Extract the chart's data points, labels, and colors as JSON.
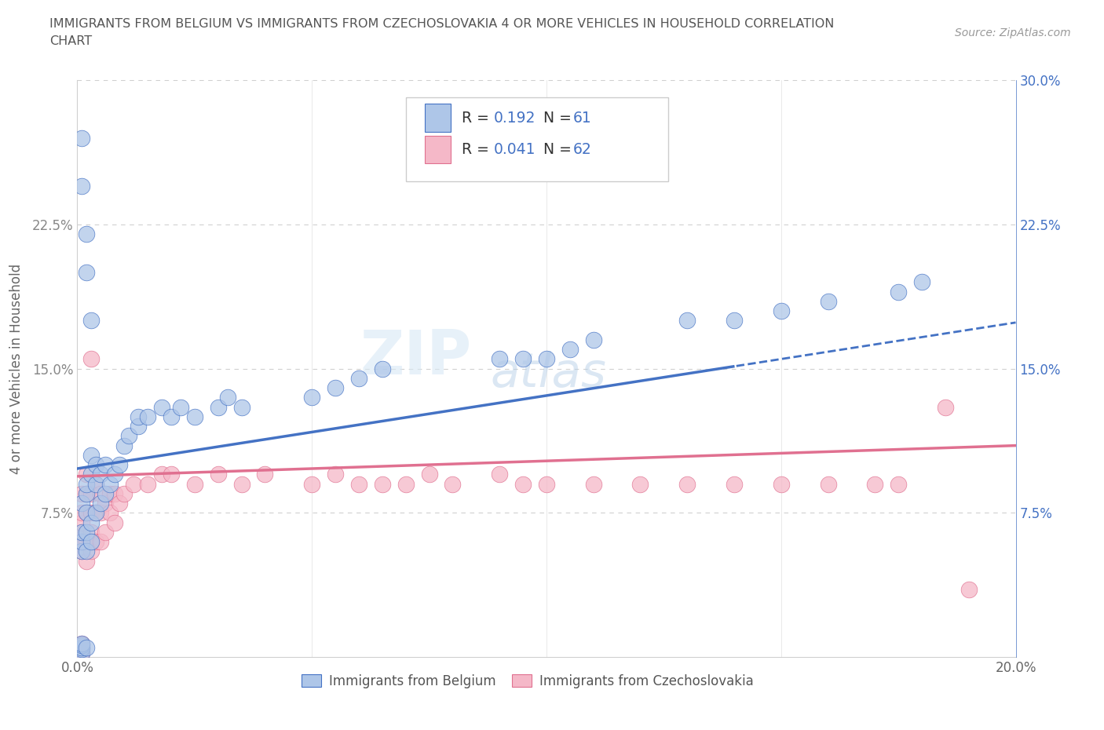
{
  "title_line1": "IMMIGRANTS FROM BELGIUM VS IMMIGRANTS FROM CZECHOSLOVAKIA 4 OR MORE VEHICLES IN HOUSEHOLD CORRELATION",
  "title_line2": "CHART",
  "source": "Source: ZipAtlas.com",
  "ylabel": "4 or more Vehicles in Household",
  "xlim": [
    0.0,
    0.2
  ],
  "ylim": [
    0.0,
    0.3
  ],
  "R_belgium": 0.192,
  "N_belgium": 61,
  "R_czech": 0.041,
  "N_czech": 62,
  "color_belgium_fill": "#aec6e8",
  "color_czech_fill": "#f5b8c8",
  "color_belgium_line": "#4472c4",
  "color_czech_line": "#e07090",
  "color_right_axis": "#4472c4",
  "watermark_zip": "ZIP",
  "watermark_atlas": "atlas",
  "legend_label_belgium": "Immigrants from Belgium",
  "legend_label_czech": "Immigrants from Czechoslovakia",
  "belgium_intercept": 0.098,
  "belgium_slope": 0.38,
  "czech_intercept": 0.094,
  "czech_slope": 0.08,
  "scatter_belgium_x": [
    0.001,
    0.001,
    0.001,
    0.001,
    0.001,
    0.001,
    0.001,
    0.001,
    0.001,
    0.002,
    0.002,
    0.002,
    0.002,
    0.002,
    0.002,
    0.003,
    0.003,
    0.003,
    0.003,
    0.004,
    0.004,
    0.004,
    0.005,
    0.005,
    0.006,
    0.006,
    0.007,
    0.008,
    0.009,
    0.01,
    0.011,
    0.013,
    0.013,
    0.015,
    0.018,
    0.02,
    0.022,
    0.025,
    0.03,
    0.032,
    0.035,
    0.05,
    0.055,
    0.06,
    0.065,
    0.09,
    0.095,
    0.1,
    0.105,
    0.11,
    0.13,
    0.14,
    0.15,
    0.16,
    0.175,
    0.18,
    0.001,
    0.001,
    0.002,
    0.002,
    0.003
  ],
  "scatter_belgium_y": [
    0.002,
    0.004,
    0.005,
    0.006,
    0.007,
    0.055,
    0.06,
    0.065,
    0.08,
    0.005,
    0.055,
    0.065,
    0.075,
    0.085,
    0.09,
    0.06,
    0.07,
    0.095,
    0.105,
    0.075,
    0.09,
    0.1,
    0.08,
    0.095,
    0.085,
    0.1,
    0.09,
    0.095,
    0.1,
    0.11,
    0.115,
    0.12,
    0.125,
    0.125,
    0.13,
    0.125,
    0.13,
    0.125,
    0.13,
    0.135,
    0.13,
    0.135,
    0.14,
    0.145,
    0.15,
    0.155,
    0.155,
    0.155,
    0.16,
    0.165,
    0.175,
    0.175,
    0.18,
    0.185,
    0.19,
    0.195,
    0.27,
    0.245,
    0.22,
    0.2,
    0.175
  ],
  "scatter_czech_x": [
    0.001,
    0.001,
    0.001,
    0.001,
    0.001,
    0.001,
    0.001,
    0.001,
    0.001,
    0.001,
    0.002,
    0.002,
    0.002,
    0.002,
    0.002,
    0.003,
    0.003,
    0.003,
    0.003,
    0.003,
    0.004,
    0.004,
    0.004,
    0.005,
    0.005,
    0.005,
    0.006,
    0.006,
    0.007,
    0.007,
    0.008,
    0.008,
    0.009,
    0.01,
    0.012,
    0.015,
    0.018,
    0.02,
    0.025,
    0.03,
    0.035,
    0.04,
    0.05,
    0.055,
    0.06,
    0.065,
    0.07,
    0.075,
    0.08,
    0.09,
    0.095,
    0.1,
    0.11,
    0.12,
    0.13,
    0.14,
    0.15,
    0.16,
    0.17,
    0.175,
    0.185,
    0.19
  ],
  "scatter_czech_y": [
    0.002,
    0.003,
    0.005,
    0.007,
    0.055,
    0.06,
    0.065,
    0.07,
    0.075,
    0.085,
    0.05,
    0.06,
    0.075,
    0.085,
    0.095,
    0.055,
    0.065,
    0.075,
    0.085,
    0.155,
    0.06,
    0.075,
    0.09,
    0.06,
    0.075,
    0.085,
    0.065,
    0.08,
    0.075,
    0.085,
    0.07,
    0.085,
    0.08,
    0.085,
    0.09,
    0.09,
    0.095,
    0.095,
    0.09,
    0.095,
    0.09,
    0.095,
    0.09,
    0.095,
    0.09,
    0.09,
    0.09,
    0.095,
    0.09,
    0.095,
    0.09,
    0.09,
    0.09,
    0.09,
    0.09,
    0.09,
    0.09,
    0.09,
    0.09,
    0.09,
    0.13,
    0.035
  ]
}
